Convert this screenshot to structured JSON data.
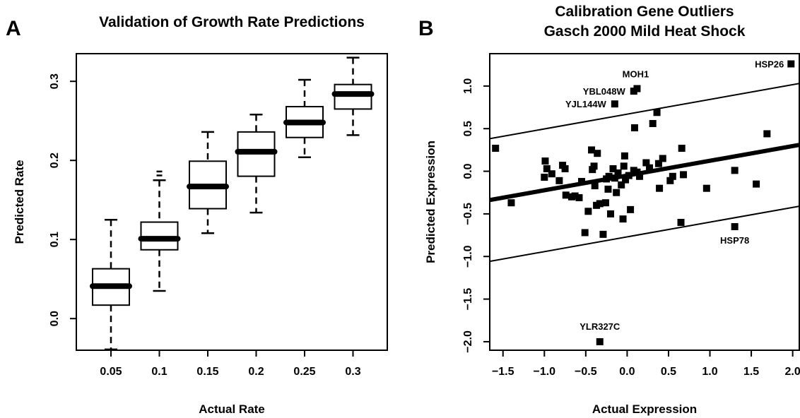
{
  "chart_data": [
    {
      "panel": "A",
      "type": "box",
      "title": "Validation of Growth Rate Predictions",
      "xlabel": "Actual Rate",
      "ylabel": "Predicted Rate",
      "ylim": [
        -0.04,
        0.335
      ],
      "y_ticks": [
        "0.0",
        "0.1",
        "0.2",
        "0.3"
      ],
      "y_tick_values": [
        0.0,
        0.1,
        0.2,
        0.3
      ],
      "categories": [
        "0.05",
        "0.1",
        "0.15",
        "0.2",
        "0.25",
        "0.3"
      ],
      "boxes": [
        {
          "category": "0.05",
          "min": -0.039,
          "q1": 0.017,
          "median": 0.041,
          "q3": 0.063,
          "max": 0.125,
          "outliers": []
        },
        {
          "category": "0.1",
          "min": 0.035,
          "q1": 0.087,
          "median": 0.101,
          "q3": 0.122,
          "max": 0.175,
          "outliers": [
            0.181,
            0.186
          ]
        },
        {
          "category": "0.15",
          "min": 0.108,
          "q1": 0.139,
          "median": 0.167,
          "q3": 0.199,
          "max": 0.236,
          "outliers": []
        },
        {
          "category": "0.2",
          "min": 0.134,
          "q1": 0.18,
          "median": 0.211,
          "q3": 0.236,
          "max": 0.258,
          "outliers": []
        },
        {
          "category": "0.25",
          "min": 0.204,
          "q1": 0.229,
          "median": 0.248,
          "q3": 0.268,
          "max": 0.302,
          "outliers": []
        },
        {
          "category": "0.3",
          "min": 0.232,
          "q1": 0.265,
          "median": 0.284,
          "q3": 0.296,
          "max": 0.33,
          "outliers": []
        }
      ]
    },
    {
      "panel": "B",
      "type": "scatter",
      "title": [
        "Calibration Gene Outliers",
        "Gasch 2000 Mild Heat Shock"
      ],
      "xlabel": "Actual Expression",
      "ylabel": "Predicted Expression",
      "xlim": [
        -1.66,
        2.08
      ],
      "ylim": [
        -2.1,
        1.38
      ],
      "x_ticks": [
        "−1.5",
        "−1.0",
        "−0.5",
        "0.0",
        "0.5",
        "1.0",
        "1.5",
        "2.0"
      ],
      "x_tick_values": [
        -1.5,
        -1.0,
        -0.5,
        0.0,
        0.5,
        1.0,
        1.5,
        2.0
      ],
      "y_ticks": [
        "−2.0",
        "−1.5",
        "−1.0",
        "−0.5",
        "0.0",
        "0.5",
        "1.0"
      ],
      "y_tick_values": [
        -2.0,
        -1.5,
        -1.0,
        -0.5,
        0.0,
        0.5,
        1.0
      ],
      "fit_line": {
        "slope": 0.173,
        "intercept": -0.05
      },
      "band_offset": 0.72,
      "labeled_points": [
        {
          "label": "HSP26",
          "x": 1.98,
          "y": 1.26
        },
        {
          "label": "MOH1",
          "x": 0.12,
          "y": 0.97
        },
        {
          "label": "YBL048W",
          "x": 0.08,
          "y": 0.94
        },
        {
          "label": "YJL144W",
          "x": -0.15,
          "y": 0.79
        },
        {
          "label": "HSP78",
          "x": 1.3,
          "y": -0.65
        },
        {
          "label": "YLR327C",
          "x": -0.33,
          "y": -2.0
        }
      ],
      "points": [
        {
          "x": -1.59,
          "y": 0.27
        },
        {
          "x": -1.4,
          "y": -0.37
        },
        {
          "x": -1.0,
          "y": -0.07
        },
        {
          "x": -0.99,
          "y": 0.12
        },
        {
          "x": -0.97,
          "y": 0.03
        },
        {
          "x": -0.91,
          "y": -0.03
        },
        {
          "x": -0.82,
          "y": -0.11
        },
        {
          "x": -0.78,
          "y": 0.07
        },
        {
          "x": -0.75,
          "y": 0.03
        },
        {
          "x": -0.74,
          "y": -0.28
        },
        {
          "x": -0.67,
          "y": -0.3
        },
        {
          "x": -0.63,
          "y": -0.29
        },
        {
          "x": -0.58,
          "y": -0.31
        },
        {
          "x": -0.55,
          "y": -0.12
        },
        {
          "x": -0.51,
          "y": -0.72
        },
        {
          "x": -0.47,
          "y": -0.47
        },
        {
          "x": -0.43,
          "y": 0.25
        },
        {
          "x": -0.42,
          "y": 0.02
        },
        {
          "x": -0.4,
          "y": 0.06
        },
        {
          "x": -0.39,
          "y": -0.17
        },
        {
          "x": -0.37,
          "y": -0.4
        },
        {
          "x": -0.36,
          "y": 0.21
        },
        {
          "x": -0.33,
          "y": -0.38
        },
        {
          "x": -0.29,
          "y": -0.74
        },
        {
          "x": -0.26,
          "y": -0.37
        },
        {
          "x": -0.25,
          "y": -0.09
        },
        {
          "x": -0.23,
          "y": -0.21
        },
        {
          "x": -0.22,
          "y": -0.06
        },
        {
          "x": -0.2,
          "y": -0.5
        },
        {
          "x": -0.17,
          "y": 0.03
        },
        {
          "x": -0.15,
          "y": -0.08
        },
        {
          "x": -0.13,
          "y": -0.25
        },
        {
          "x": -0.11,
          "y": -0.02
        },
        {
          "x": -0.07,
          "y": -0.16
        },
        {
          "x": -0.05,
          "y": -0.56
        },
        {
          "x": -0.04,
          "y": 0.06
        },
        {
          "x": -0.03,
          "y": 0.18
        },
        {
          "x": -0.02,
          "y": -0.1
        },
        {
          "x": 0.02,
          "y": -0.05
        },
        {
          "x": 0.04,
          "y": -0.45
        },
        {
          "x": 0.08,
          "y": 0.01
        },
        {
          "x": 0.09,
          "y": 0.51
        },
        {
          "x": 0.12,
          "y": -0.01
        },
        {
          "x": 0.15,
          "y": -0.06
        },
        {
          "x": 0.23,
          "y": 0.1
        },
        {
          "x": 0.27,
          "y": 0.04
        },
        {
          "x": 0.31,
          "y": 0.56
        },
        {
          "x": 0.36,
          "y": 0.69
        },
        {
          "x": 0.38,
          "y": 0.09
        },
        {
          "x": 0.39,
          "y": -0.2
        },
        {
          "x": 0.43,
          "y": 0.15
        },
        {
          "x": 0.52,
          "y": -0.11
        },
        {
          "x": 0.55,
          "y": -0.06
        },
        {
          "x": 0.65,
          "y": -0.6
        },
        {
          "x": 0.66,
          "y": 0.27
        },
        {
          "x": 0.68,
          "y": -0.04
        },
        {
          "x": 0.96,
          "y": -0.2
        },
        {
          "x": 1.3,
          "y": 0.01
        },
        {
          "x": 1.56,
          "y": -0.15
        },
        {
          "x": 1.69,
          "y": 0.44
        }
      ]
    }
  ]
}
